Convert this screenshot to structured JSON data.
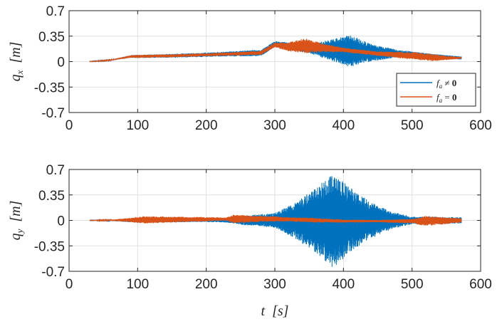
{
  "chart_data": [
    {
      "type": "line",
      "ylabel_symbol": "q",
      "ylabel_sub": "x",
      "ylabel_unit": "[m]",
      "xlim": [
        0,
        600
      ],
      "ylim": [
        -0.7,
        0.7
      ],
      "xticks": [
        0,
        100,
        200,
        300,
        400,
        500,
        600
      ],
      "xtick_labels": [
        "0",
        "100",
        "200",
        "300",
        "400",
        "500",
        "600"
      ],
      "yticks": [
        0.7,
        0.35,
        0,
        -0.35,
        -0.7
      ],
      "ytick_labels": [
        "0.7",
        "0.35",
        "0",
        "-0.35",
        "-0.7"
      ],
      "grid": true,
      "legend": {
        "placement": "right-lower",
        "entries": [
          {
            "sym": "f",
            "sub": "a",
            "rel": " ≠ ",
            "val": "0",
            "color": "#0072BD"
          },
          {
            "sym": "f",
            "sub": "a",
            "rel": " = ",
            "val": "0",
            "color": "#D95319"
          }
        ]
      },
      "series": [
        {
          "color": "#0072BD",
          "x_start": 30,
          "x_end": 572,
          "mean": [
            [
              30,
              0
            ],
            [
              60,
              0.02
            ],
            [
              90,
              0.07
            ],
            [
              150,
              0.08
            ],
            [
              220,
              0.1
            ],
            [
              280,
              0.12
            ],
            [
              300,
              0.24
            ],
            [
              330,
              0.2
            ],
            [
              360,
              0.17
            ],
            [
              400,
              0.15
            ],
            [
              450,
              0.12
            ],
            [
              500,
              0.1
            ],
            [
              540,
              0.07
            ],
            [
              572,
              0.05
            ]
          ],
          "amplitude": [
            [
              30,
              0
            ],
            [
              60,
              0.005
            ],
            [
              100,
              0.02
            ],
            [
              220,
              0.03
            ],
            [
              260,
              0.04
            ],
            [
              300,
              0.04
            ],
            [
              350,
              0.06
            ],
            [
              380,
              0.14
            ],
            [
              410,
              0.22
            ],
            [
              440,
              0.12
            ],
            [
              480,
              0.05
            ],
            [
              520,
              0.03
            ],
            [
              572,
              0.02
            ]
          ]
        },
        {
          "color": "#D95319",
          "x_start": 30,
          "x_end": 572,
          "mean": [
            [
              30,
              0
            ],
            [
              60,
              0.02
            ],
            [
              90,
              0.07
            ],
            [
              150,
              0.08
            ],
            [
              220,
              0.1
            ],
            [
              280,
              0.12
            ],
            [
              300,
              0.23
            ],
            [
              320,
              0.2
            ],
            [
              340,
              0.22
            ],
            [
              360,
              0.2
            ],
            [
              400,
              0.16
            ],
            [
              450,
              0.11
            ],
            [
              500,
              0.08
            ],
            [
              540,
              0.05
            ],
            [
              572,
              0.05
            ]
          ],
          "amplitude": [
            [
              30,
              0
            ],
            [
              60,
              0.005
            ],
            [
              100,
              0.02
            ],
            [
              220,
              0.02
            ],
            [
              300,
              0.03
            ],
            [
              330,
              0.08
            ],
            [
              345,
              0.1
            ],
            [
              370,
              0.06
            ],
            [
              400,
              0.03
            ],
            [
              450,
              0.03
            ],
            [
              500,
              0.05
            ],
            [
              530,
              0.05
            ],
            [
              560,
              0.02
            ],
            [
              572,
              0.01
            ]
          ]
        }
      ]
    },
    {
      "type": "line",
      "ylabel_symbol": "q",
      "ylabel_sub": "y",
      "ylabel_unit": "[m]",
      "xlabel_symbol": "t",
      "xlabel_unit": "[s]",
      "xlim": [
        0,
        600
      ],
      "ylim": [
        -0.7,
        0.7
      ],
      "xticks": [
        0,
        100,
        200,
        300,
        400,
        500,
        600
      ],
      "xtick_labels": [
        "0",
        "100",
        "200",
        "300",
        "400",
        "500",
        "600"
      ],
      "yticks": [
        0.7,
        0.35,
        0,
        -0.35,
        -0.7
      ],
      "ytick_labels": [
        "0.7",
        "0.35",
        "0",
        "-0.35",
        "-0.7"
      ],
      "grid": true,
      "series": [
        {
          "color": "#0072BD",
          "x_start": 30,
          "x_end": 572,
          "mean": [
            [
              30,
              0
            ],
            [
              572,
              0
            ]
          ],
          "amplitude": [
            [
              30,
              0
            ],
            [
              60,
              0.005
            ],
            [
              100,
              0.03
            ],
            [
              200,
              0.02
            ],
            [
              230,
              0.03
            ],
            [
              250,
              0.06
            ],
            [
              300,
              0.1
            ],
            [
              330,
              0.25
            ],
            [
              360,
              0.45
            ],
            [
              385,
              0.65
            ],
            [
              410,
              0.45
            ],
            [
              440,
              0.25
            ],
            [
              470,
              0.12
            ],
            [
              500,
              0.05
            ],
            [
              540,
              0.05
            ],
            [
              572,
              0.04
            ]
          ]
        },
        {
          "color": "#D95319",
          "x_start": 30,
          "x_end": 572,
          "mean": [
            [
              30,
              0
            ],
            [
              240,
              0.02
            ],
            [
              300,
              0.02
            ],
            [
              400,
              -0.01
            ],
            [
              500,
              -0.01
            ],
            [
              572,
              0
            ]
          ],
          "amplitude": [
            [
              30,
              0
            ],
            [
              60,
              0.005
            ],
            [
              90,
              0.03
            ],
            [
              110,
              0.05
            ],
            [
              150,
              0.04
            ],
            [
              200,
              0.03
            ],
            [
              230,
              0.02
            ],
            [
              240,
              0.06
            ],
            [
              280,
              0.04
            ],
            [
              320,
              0.03
            ],
            [
              360,
              0.03
            ],
            [
              400,
              0.02
            ],
            [
              450,
              0.015
            ],
            [
              500,
              0.03
            ],
            [
              520,
              0.07
            ],
            [
              545,
              0.05
            ],
            [
              572,
              0.03
            ]
          ]
        }
      ]
    }
  ]
}
